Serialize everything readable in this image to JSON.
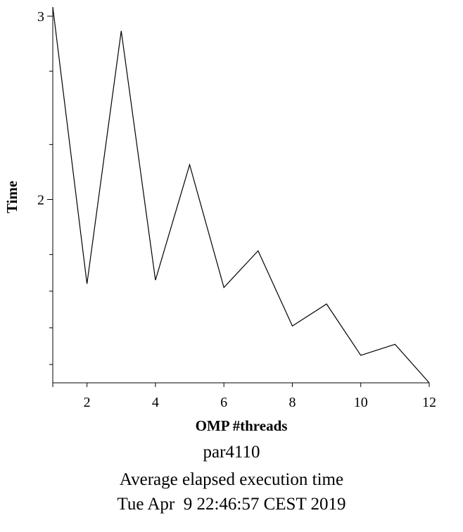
{
  "chart_data": {
    "type": "line",
    "xlabel": "OMP #threads",
    "ylabel": "Time",
    "xlim": [
      1,
      12
    ],
    "ylim": [
      1.0,
      3.05
    ],
    "x_ticks": [
      2,
      4,
      6,
      8,
      10,
      12
    ],
    "y_ticks_labeled": [
      2,
      3
    ],
    "y_ticks_minor": [
      1.1,
      1.3,
      1.5,
      1.7,
      2.3,
      2.7
    ],
    "x": [
      1,
      2,
      3,
      4,
      5,
      6,
      7,
      8,
      9,
      10,
      11,
      12
    ],
    "series": [
      {
        "values": [
          3.05,
          1.54,
          2.92,
          1.56,
          2.19,
          1.52,
          1.72,
          1.31,
          1.43,
          1.15,
          1.21,
          1.0
        ]
      }
    ],
    "grid": false,
    "line_color": "#000000"
  },
  "captions": [
    "par4110",
    "Average elapsed execution time",
    "Tue Apr  9 22:46:57 CEST 2019"
  ]
}
